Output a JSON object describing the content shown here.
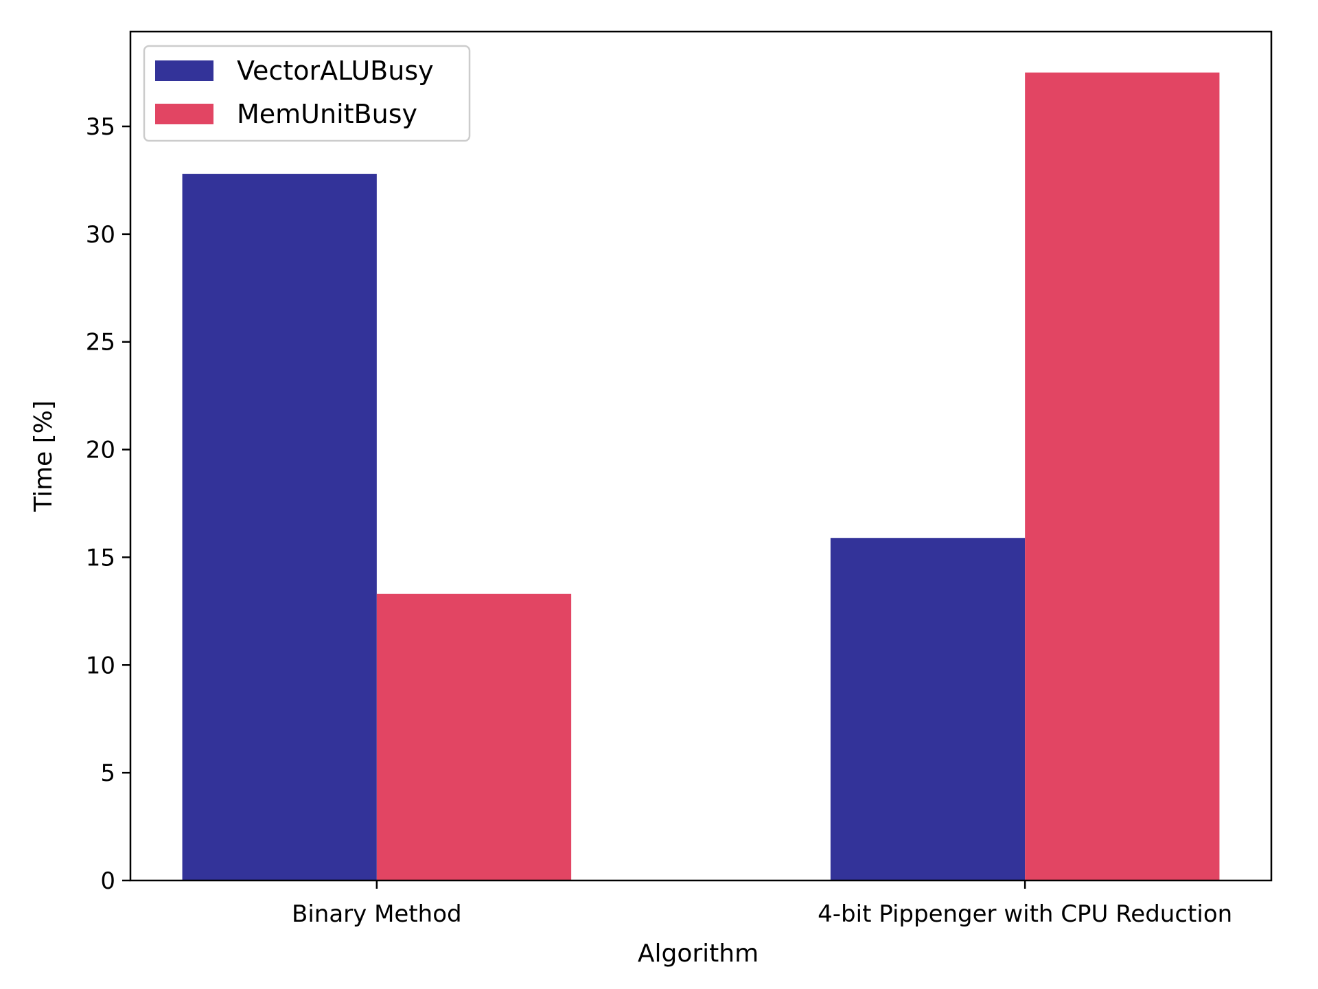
{
  "chart_data": {
    "type": "bar",
    "title": "",
    "xlabel": "Algorithm",
    "ylabel": "Time [%]",
    "categories": [
      "Binary Method",
      "4-bit Pippenger with CPU Reduction"
    ],
    "series": [
      {
        "name": "VectorALUBusy",
        "color": "#333399",
        "values": [
          32.8,
          15.9
        ]
      },
      {
        "name": "MemUnitBusy",
        "color": "#e24563",
        "values": [
          13.3,
          37.5
        ]
      }
    ],
    "ylim": [
      0,
      39.4
    ],
    "yticks": [
      0,
      5,
      10,
      15,
      20,
      25,
      30,
      35
    ],
    "grid": false,
    "legend_position": "upper left"
  }
}
